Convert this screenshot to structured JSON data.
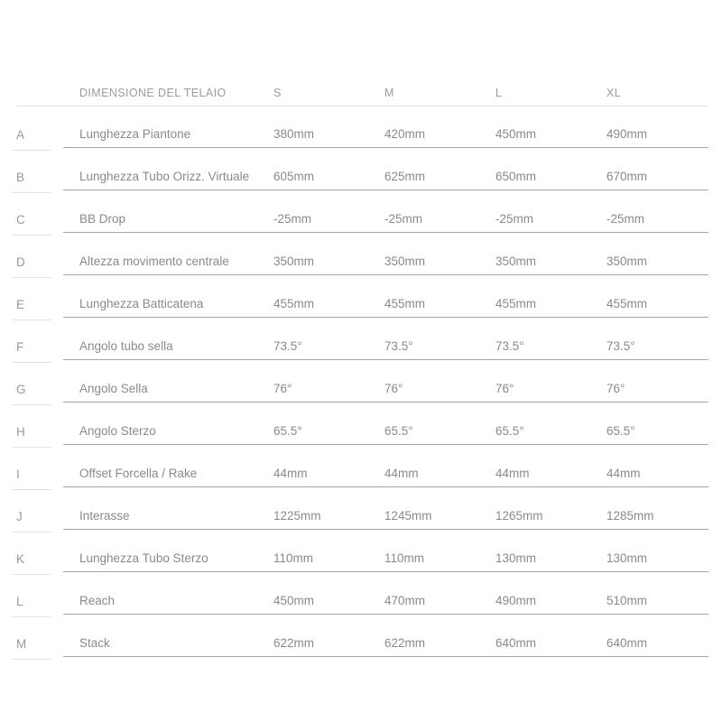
{
  "table": {
    "header": {
      "label": "DIMENSIONE DEL TELAIO",
      "sizes": [
        "S",
        "M",
        "L",
        "XL"
      ]
    },
    "rows": [
      {
        "letter": "A",
        "label": "Lunghezza Piantone",
        "values": [
          "380mm",
          "420mm",
          "450mm",
          "490mm"
        ]
      },
      {
        "letter": "B",
        "label": "Lunghezza Tubo Orizz. Virtuale",
        "values": [
          "605mm",
          "625mm",
          "650mm",
          "670mm"
        ]
      },
      {
        "letter": "C",
        "label": "BB Drop",
        "values": [
          "-25mm",
          "-25mm",
          "-25mm",
          "-25mm"
        ]
      },
      {
        "letter": "D",
        "label": "Altezza movimento centrale",
        "values": [
          "350mm",
          "350mm",
          "350mm",
          "350mm"
        ]
      },
      {
        "letter": "E",
        "label": "Lunghezza Batticatena",
        "values": [
          "455mm",
          "455mm",
          "455mm",
          "455mm"
        ]
      },
      {
        "letter": "F",
        "label": "Angolo tubo sella",
        "values": [
          "73.5°",
          "73.5°",
          "73.5°",
          "73.5°"
        ]
      },
      {
        "letter": "G",
        "label": "Angolo Sella",
        "values": [
          "76°",
          "76°",
          "76°",
          "76°"
        ]
      },
      {
        "letter": "H",
        "label": "Angolo Sterzo",
        "values": [
          "65.5°",
          "65.5°",
          "65.5°",
          "65.5°"
        ]
      },
      {
        "letter": "I",
        "label": "Offset Forcella / Rake",
        "values": [
          "44mm",
          "44mm",
          "44mm",
          "44mm"
        ]
      },
      {
        "letter": "J",
        "label": "Interasse",
        "values": [
          "1225mm",
          "1245mm",
          "1265mm",
          "1285mm"
        ]
      },
      {
        "letter": "K",
        "label": "Lunghezza Tubo Sterzo",
        "values": [
          "110mm",
          "110mm",
          "130mm",
          "130mm"
        ]
      },
      {
        "letter": "L",
        "label": "Reach",
        "values": [
          "450mm",
          "470mm",
          "490mm",
          "510mm"
        ]
      },
      {
        "letter": "M",
        "label": "Stack",
        "values": [
          "622mm",
          "622mm",
          "640mm",
          "640mm"
        ]
      }
    ],
    "colors": {
      "text": "#8a8a8a",
      "header_text": "#9c9c9c",
      "letter_text": "#9a9a9a",
      "row_divider": "#a6a6a6",
      "light_divider": "#e3e3e3",
      "background": "#ffffff"
    }
  }
}
